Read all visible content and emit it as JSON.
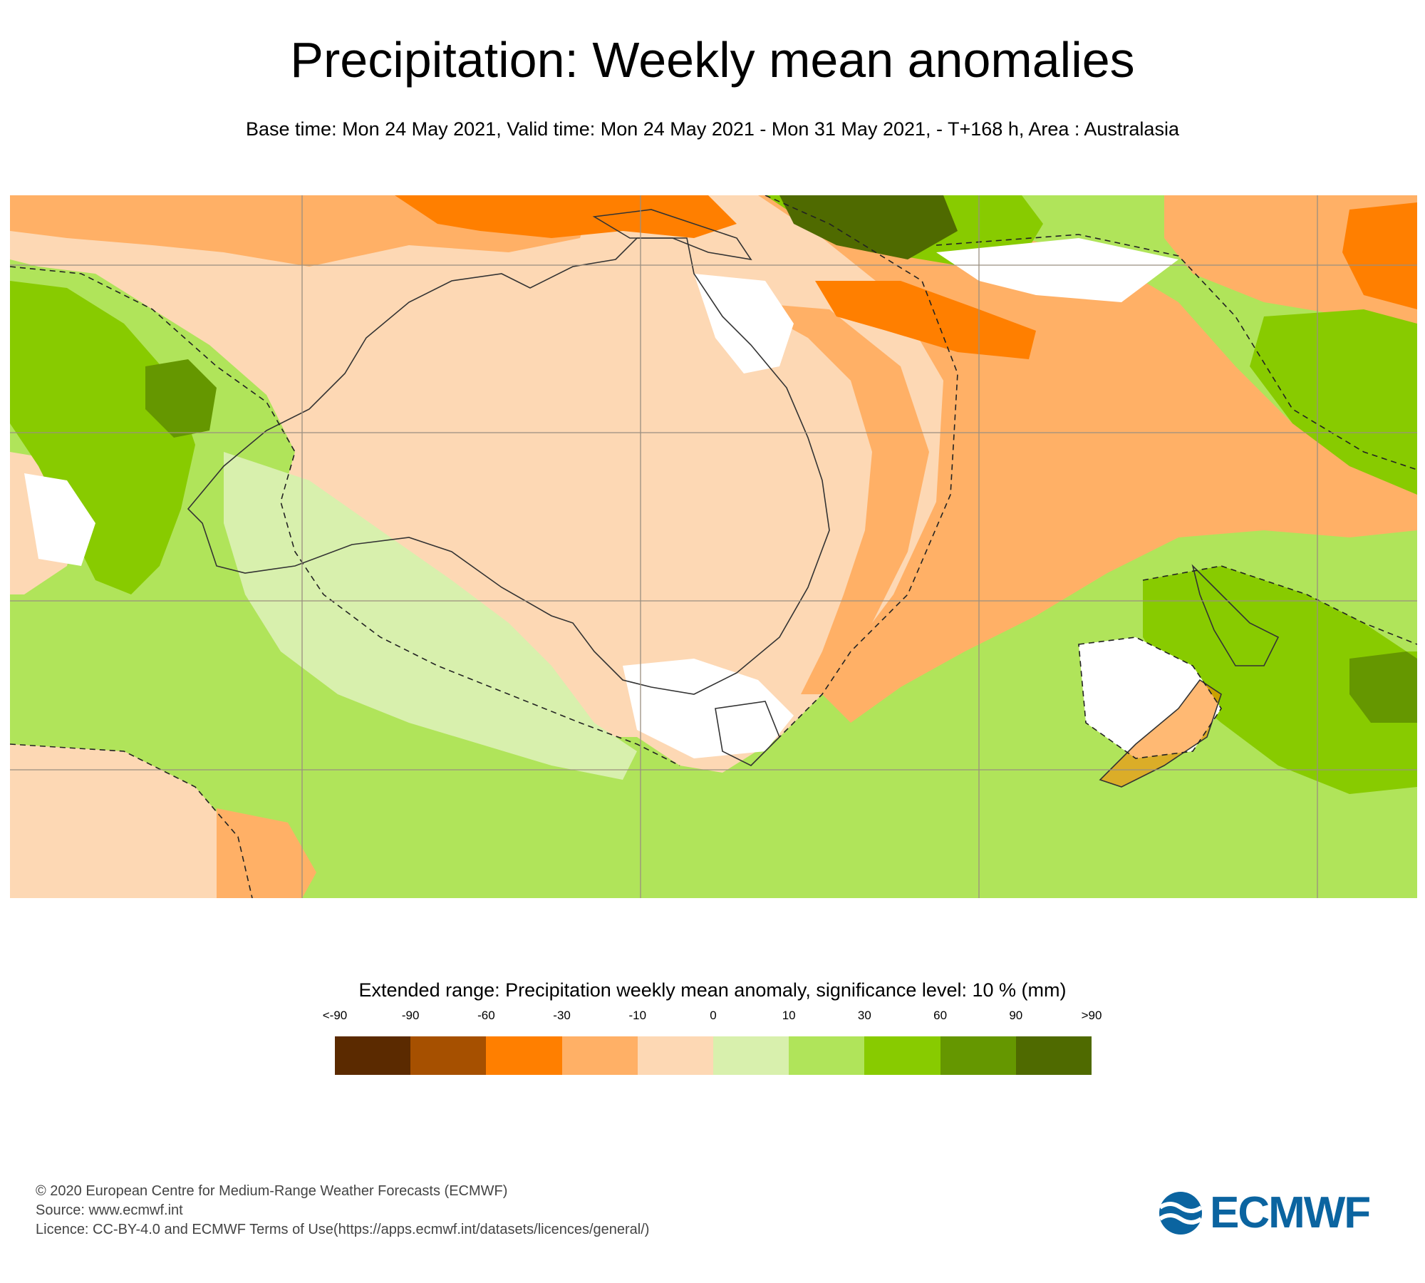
{
  "header": {
    "title": "Precipitation: Weekly mean anomalies",
    "subtitle": "Base time: Mon 24 May 2021, Valid time: Mon 24 May 2021 - Mon 31 May 2021, - T+168 h, Area : Australasia"
  },
  "map": {
    "area": "Australasia",
    "significance_contours": "dashed"
  },
  "legend": {
    "title": "Extended range: Precipitation weekly mean anomaly, significance level: 10 % (mm)",
    "ticks": [
      "<-90",
      "-90",
      "-60",
      "-30",
      "-10",
      "0",
      "10",
      "30",
      "60",
      "90",
      ">90"
    ],
    "colors": [
      "#5b2a00",
      "#a65000",
      "#ff7f00",
      "#ffb066",
      "#fdd8b4",
      "#d8f0ad",
      "#b0e45a",
      "#88cb00",
      "#659700",
      "#4f6a00"
    ]
  },
  "footer": {
    "copyright": "© 2020 European Centre for Medium-Range Weather Forecasts (ECMWF)",
    "source": "Source: www.ecmwf.int",
    "licence": "Licence: CC-BY-4.0 and ECMWF Terms of Use(https://apps.ecmwf.int/datasets/licences/general/)",
    "logo_text": "ECMWF"
  }
}
